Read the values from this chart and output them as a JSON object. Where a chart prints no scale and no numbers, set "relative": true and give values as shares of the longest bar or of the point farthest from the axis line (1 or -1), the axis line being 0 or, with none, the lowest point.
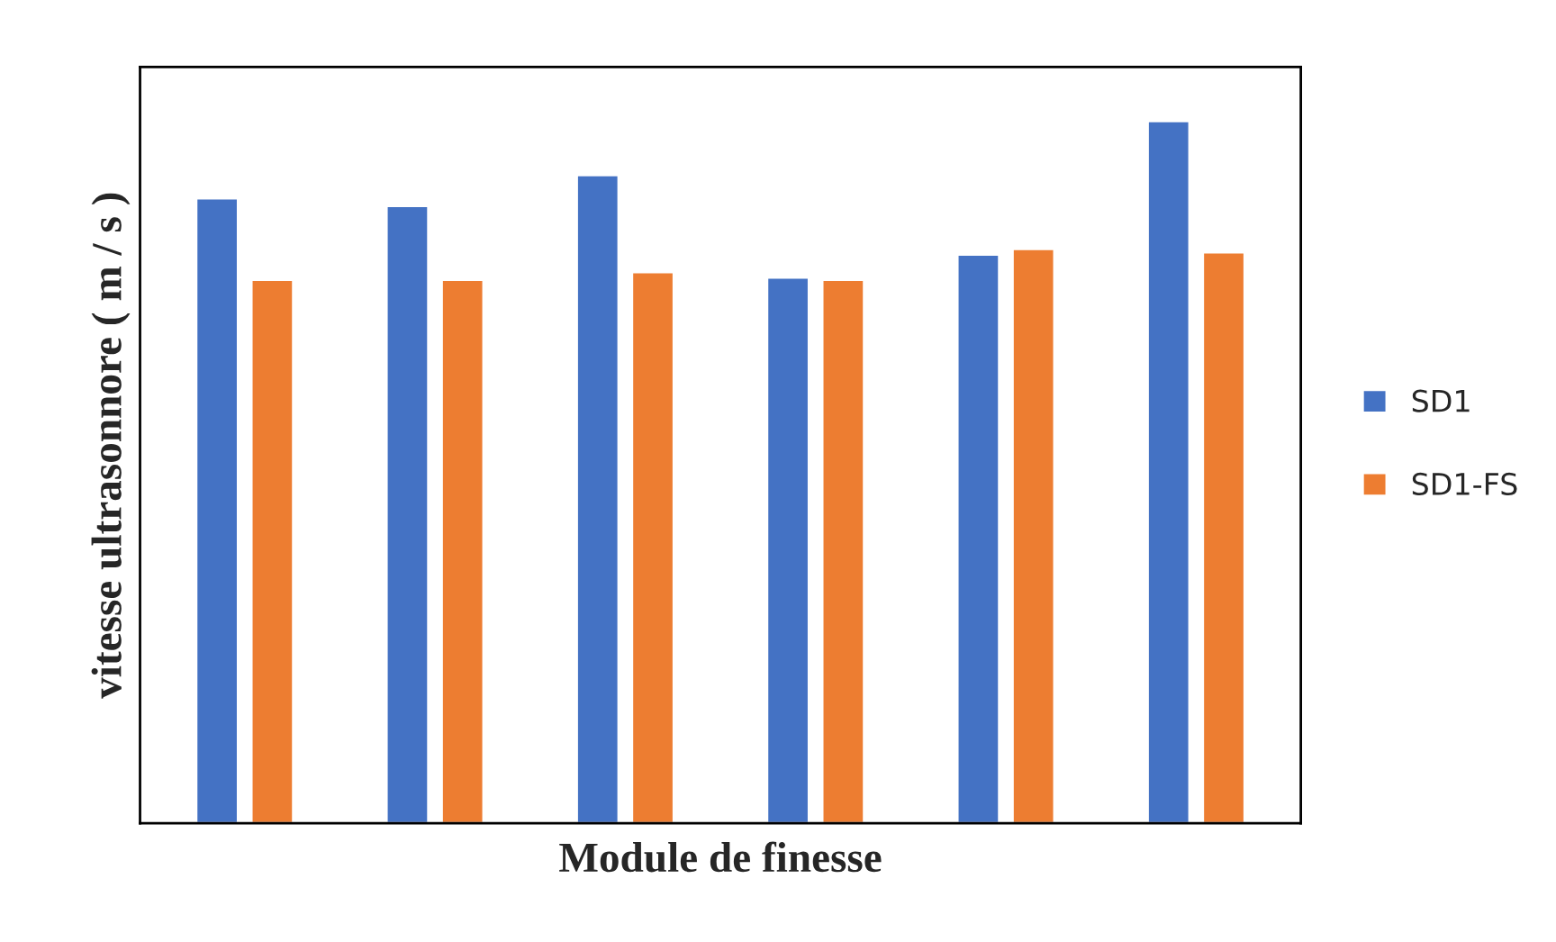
{
  "chart_data": {
    "type": "bar",
    "relative": true,
    "xlabel": "Module de finesse",
    "ylabel": "vitesse ultrasonnore ( m / s )",
    "categories": [
      null,
      null,
      null,
      null,
      null,
      null
    ],
    "series": [
      {
        "name": "SD1",
        "color": "#4472c4",
        "values": [
          0.89,
          0.879,
          0.923,
          0.777,
          0.81,
          1
        ]
      },
      {
        "name": "SD1-FS",
        "color": "#ed7d31",
        "values": [
          0.774,
          0.774,
          0.785,
          0.774,
          0.818,
          0.813
        ]
      }
    ],
    "legend": "right",
    "grid": false
  }
}
